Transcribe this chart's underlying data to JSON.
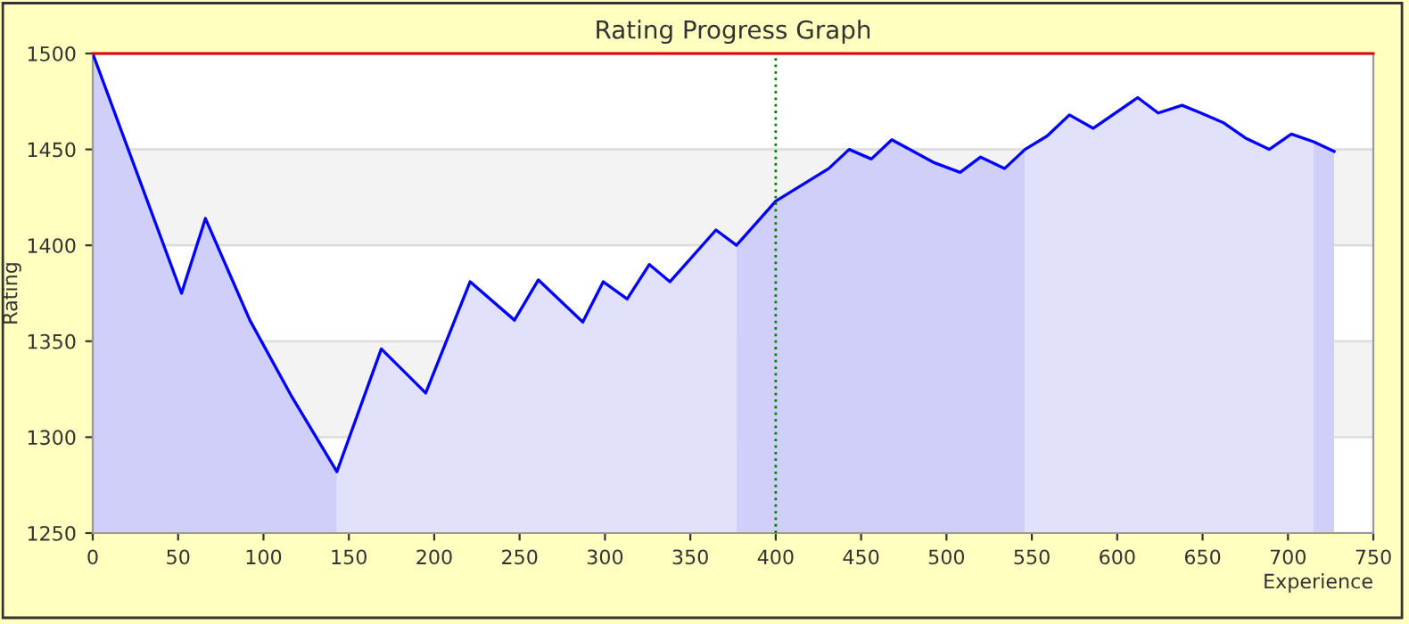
{
  "chart_data": {
    "type": "area",
    "title": "Rating Progress Graph",
    "xlabel": "Experience",
    "ylabel": "Rating",
    "xlim": [
      0,
      750
    ],
    "ylim": [
      1250,
      1500
    ],
    "xticks": [
      0,
      50,
      100,
      150,
      200,
      250,
      300,
      350,
      400,
      450,
      500,
      550,
      600,
      650,
      700,
      750
    ],
    "yticks": [
      1250,
      1300,
      1350,
      1400,
      1450,
      1500
    ],
    "grid": "y",
    "legend": false,
    "bands": [
      {
        "axis": "y",
        "from": 1300,
        "to": 1350,
        "color": "#f3f3f3"
      },
      {
        "axis": "y",
        "from": 1400,
        "to": 1450,
        "color": "#f3f3f3"
      }
    ],
    "ref_lines": [
      {
        "axis": "x",
        "value": 400,
        "color": "#008000",
        "line_style": "dotted"
      },
      {
        "axis": "y",
        "value": 1500,
        "color": "#dd0000",
        "line_style": "solid"
      }
    ],
    "series": [
      {
        "color": "#cfcffa",
        "x": [
          0,
          52,
          66,
          92,
          116,
          143
        ],
        "values": [
          1500,
          1375,
          1414,
          1361,
          1322,
          1282
        ]
      },
      {
        "color": "#e1e1fb",
        "x": [
          143,
          169,
          195,
          221,
          247,
          261,
          287,
          299,
          313,
          326,
          338,
          365,
          377
        ],
        "values": [
          1282,
          1346,
          1323,
          1381,
          1361,
          1382,
          1360,
          1381,
          1372,
          1390,
          1381,
          1408,
          1400
        ]
      },
      {
        "color": "#cfcffa",
        "x": [
          377,
          400,
          431,
          443,
          456,
          468,
          493,
          508,
          520,
          534,
          546
        ],
        "values": [
          1400,
          1423,
          1440,
          1450,
          1445,
          1455,
          1443,
          1438,
          1446,
          1440,
          1450
        ]
      },
      {
        "color": "#e1e1fb",
        "x": [
          546,
          559,
          572,
          586,
          612,
          624,
          638,
          649,
          662,
          675,
          689,
          702,
          715
        ],
        "values": [
          1450,
          1457,
          1468,
          1461,
          1477,
          1469,
          1473,
          1469,
          1464,
          1456,
          1450,
          1458,
          1454
        ]
      },
      {
        "color": "#cfcffa",
        "x": [
          715,
          727
        ],
        "values": [
          1454,
          1449
        ]
      },
      {
        "type": "line",
        "color": "#0000ff",
        "x": [
          0,
          52,
          66,
          92,
          116,
          143,
          169,
          195,
          221,
          247,
          261,
          287,
          299,
          313,
          326,
          338,
          365,
          377,
          400,
          431,
          443,
          456,
          468,
          493,
          508,
          520,
          534,
          546,
          559,
          572,
          586,
          612,
          624,
          638,
          649,
          662,
          675,
          689,
          702,
          715,
          727
        ],
        "values": [
          1500,
          1375,
          1414,
          1361,
          1322,
          1282,
          1346,
          1323,
          1381,
          1361,
          1382,
          1360,
          1381,
          1372,
          1390,
          1381,
          1408,
          1400,
          1423,
          1440,
          1450,
          1445,
          1455,
          1443,
          1438,
          1446,
          1440,
          1450,
          1457,
          1468,
          1461,
          1477,
          1469,
          1473,
          1469,
          1464,
          1456,
          1450,
          1458,
          1454,
          1449
        ]
      }
    ]
  }
}
